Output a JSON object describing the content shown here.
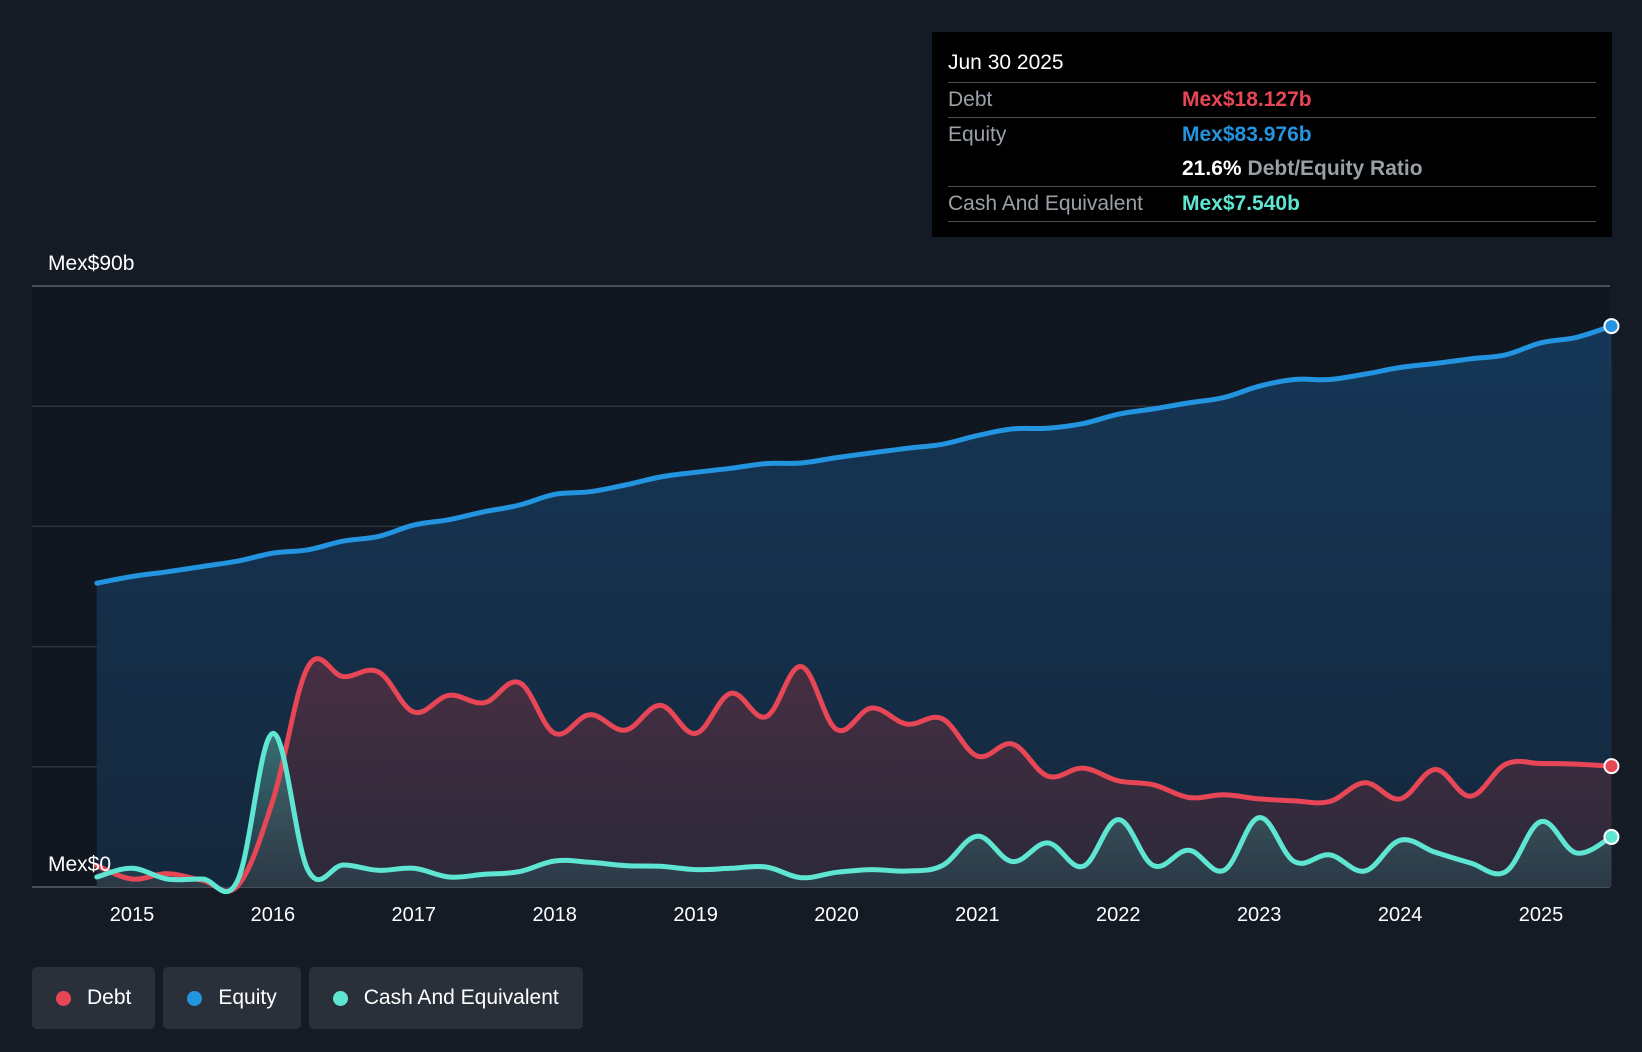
{
  "chart_data": {
    "type": "area",
    "y_top_label": "Mex$90b",
    "y_bottom_label": "Mex$0",
    "ylim": [
      0,
      90
    ],
    "xlim": [
      2014.7,
      2025.5
    ],
    "x_ticks": [
      "2015",
      "2016",
      "2017",
      "2018",
      "2019",
      "2020",
      "2021",
      "2022",
      "2023",
      "2024",
      "2025"
    ],
    "series": [
      {
        "name": "Equity",
        "color": "#2394df",
        "points": [
          [
            2014.75,
            45.5
          ],
          [
            2015.0,
            46.5
          ],
          [
            2015.25,
            47.2
          ],
          [
            2015.5,
            48.0
          ],
          [
            2015.75,
            48.8
          ],
          [
            2016.0,
            50.0
          ],
          [
            2016.25,
            50.5
          ],
          [
            2016.5,
            51.8
          ],
          [
            2016.75,
            52.5
          ],
          [
            2017.0,
            54.2
          ],
          [
            2017.25,
            55.0
          ],
          [
            2017.5,
            56.2
          ],
          [
            2017.75,
            57.2
          ],
          [
            2018.0,
            58.8
          ],
          [
            2018.25,
            59.2
          ],
          [
            2018.5,
            60.2
          ],
          [
            2018.75,
            61.4
          ],
          [
            2019.0,
            62.1
          ],
          [
            2019.25,
            62.7
          ],
          [
            2019.5,
            63.4
          ],
          [
            2019.75,
            63.5
          ],
          [
            2020.0,
            64.3
          ],
          [
            2020.25,
            65.0
          ],
          [
            2020.5,
            65.7
          ],
          [
            2020.75,
            66.3
          ],
          [
            2021.0,
            67.6
          ],
          [
            2021.25,
            68.6
          ],
          [
            2021.5,
            68.7
          ],
          [
            2021.75,
            69.4
          ],
          [
            2022.0,
            70.8
          ],
          [
            2022.25,
            71.6
          ],
          [
            2022.5,
            72.5
          ],
          [
            2022.75,
            73.3
          ],
          [
            2023.0,
            75.0
          ],
          [
            2023.25,
            76.0
          ],
          [
            2023.5,
            76.0
          ],
          [
            2023.75,
            76.8
          ],
          [
            2024.0,
            77.8
          ],
          [
            2024.25,
            78.4
          ],
          [
            2024.5,
            79.1
          ],
          [
            2024.75,
            79.7
          ],
          [
            2025.0,
            81.5
          ],
          [
            2025.25,
            82.3
          ],
          [
            2025.5,
            84.0
          ]
        ]
      },
      {
        "name": "Debt",
        "color": "#e64655",
        "points": [
          [
            2014.75,
            3.2
          ],
          [
            2015.0,
            1.2
          ],
          [
            2015.25,
            2.0
          ],
          [
            2015.5,
            1.0
          ],
          [
            2015.75,
            0.2
          ],
          [
            2016.0,
            13.0
          ],
          [
            2016.25,
            33.0
          ],
          [
            2016.5,
            31.5
          ],
          [
            2016.75,
            32.2
          ],
          [
            2017.0,
            26.2
          ],
          [
            2017.25,
            28.7
          ],
          [
            2017.5,
            27.6
          ],
          [
            2017.75,
            30.6
          ],
          [
            2018.0,
            23.0
          ],
          [
            2018.25,
            25.8
          ],
          [
            2018.5,
            23.5
          ],
          [
            2018.75,
            27.2
          ],
          [
            2019.0,
            23.0
          ],
          [
            2019.25,
            29.0
          ],
          [
            2019.5,
            25.5
          ],
          [
            2019.75,
            33.0
          ],
          [
            2020.0,
            23.6
          ],
          [
            2020.25,
            26.8
          ],
          [
            2020.5,
            24.4
          ],
          [
            2020.75,
            25.2
          ],
          [
            2021.0,
            19.6
          ],
          [
            2021.25,
            21.4
          ],
          [
            2021.5,
            16.6
          ],
          [
            2021.75,
            17.8
          ],
          [
            2022.0,
            15.9
          ],
          [
            2022.25,
            15.3
          ],
          [
            2022.5,
            13.4
          ],
          [
            2022.75,
            13.8
          ],
          [
            2023.0,
            13.2
          ],
          [
            2023.25,
            12.9
          ],
          [
            2023.5,
            12.8
          ],
          [
            2023.75,
            15.6
          ],
          [
            2024.0,
            13.2
          ],
          [
            2024.25,
            17.6
          ],
          [
            2024.5,
            13.6
          ],
          [
            2024.75,
            18.4
          ],
          [
            2025.0,
            18.5
          ],
          [
            2025.25,
            18.4
          ],
          [
            2025.5,
            18.1
          ]
        ]
      },
      {
        "name": "Cash And Equivalent",
        "color": "#5ee6d2",
        "points": [
          [
            2014.75,
            1.5
          ],
          [
            2015.0,
            2.8
          ],
          [
            2015.25,
            1.2
          ],
          [
            2015.5,
            1.2
          ],
          [
            2015.75,
            1.0
          ],
          [
            2016.0,
            23.0
          ],
          [
            2016.25,
            2.5
          ],
          [
            2016.5,
            3.3
          ],
          [
            2016.75,
            2.5
          ],
          [
            2017.0,
            2.8
          ],
          [
            2017.25,
            1.5
          ],
          [
            2017.5,
            1.9
          ],
          [
            2017.75,
            2.3
          ],
          [
            2018.0,
            3.9
          ],
          [
            2018.25,
            3.7
          ],
          [
            2018.5,
            3.2
          ],
          [
            2018.75,
            3.1
          ],
          [
            2019.0,
            2.6
          ],
          [
            2019.25,
            2.8
          ],
          [
            2019.5,
            3.0
          ],
          [
            2019.75,
            1.4
          ],
          [
            2020.0,
            2.2
          ],
          [
            2020.25,
            2.6
          ],
          [
            2020.5,
            2.4
          ],
          [
            2020.75,
            3.2
          ],
          [
            2021.0,
            7.6
          ],
          [
            2021.25,
            3.8
          ],
          [
            2021.5,
            6.6
          ],
          [
            2021.75,
            3.1
          ],
          [
            2022.0,
            10.1
          ],
          [
            2022.25,
            3.2
          ],
          [
            2022.5,
            5.5
          ],
          [
            2022.75,
            2.5
          ],
          [
            2023.0,
            10.4
          ],
          [
            2023.25,
            3.8
          ],
          [
            2023.5,
            4.8
          ],
          [
            2023.75,
            2.4
          ],
          [
            2024.0,
            7.0
          ],
          [
            2024.25,
            5.2
          ],
          [
            2024.5,
            3.6
          ],
          [
            2024.75,
            2.3
          ],
          [
            2025.0,
            9.8
          ],
          [
            2025.25,
            5.1
          ],
          [
            2025.5,
            7.5
          ]
        ]
      }
    ],
    "tooltip": {
      "date": "Jun 30 2025",
      "debt_label": "Debt",
      "debt_value": "Mex$18.127b",
      "equity_label": "Equity",
      "equity_value": "Mex$83.976b",
      "ratio_value": "21.6%",
      "ratio_label": "Debt/Equity Ratio",
      "cash_label": "Cash And Equivalent",
      "cash_value": "Mex$7.540b"
    },
    "legend": [
      {
        "label": "Debt",
        "color": "#e64655"
      },
      {
        "label": "Equity",
        "color": "#2394df"
      },
      {
        "label": "Cash And Equivalent",
        "color": "#5ee6d2"
      }
    ]
  }
}
